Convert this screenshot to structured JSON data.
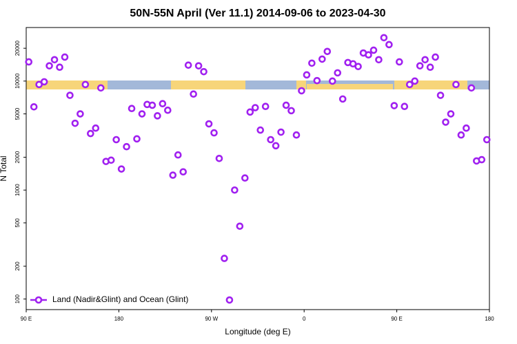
{
  "chart_data": {
    "type": "scatter",
    "title": "50N-55N April (Ver 11.1)   2014-09-06 to 2023-04-30",
    "x_label": "Longitude (deg E)",
    "y_label": "N Total",
    "log_y": true,
    "legend_position": "bottom-left",
    "xlim": [
      90,
      540
    ],
    "ylim": [
      80,
      31000
    ],
    "xticks": [
      {
        "value": 90,
        "label": "90 E"
      },
      180,
      {
        "value": 270,
        "label": "90 W"
      },
      {
        "value": 360,
        "label": "0"
      },
      {
        "value": 450,
        "label": "90 E"
      },
      {
        "value": 540,
        "label": "180"
      }
    ],
    "yticks": [
      100,
      200,
      500,
      1000,
      2000,
      5000,
      10000,
      20000
    ],
    "series": [
      {
        "name": "Land (Nadir&Glint) and Ocean (Glint)",
        "color": "#a020f0",
        "x": [
          92.5,
          97.5,
          102.5,
          107.5,
          112.5,
          117.5,
          122.5,
          127.5,
          132.5,
          137.5,
          142.5,
          147.5,
          152.5,
          157.5,
          162.5,
          167.5,
          172.5,
          177.5,
          182.5,
          187.5,
          192.5,
          197.5,
          202.5,
          207.5,
          212.5,
          217.5,
          222.5,
          227.5,
          232.5,
          237.5,
          242.5,
          247.5,
          252.5,
          257.5,
          262.5,
          267.5,
          272.5,
          277.5,
          282.5,
          287.5,
          292.5,
          297.5,
          302.5,
          307.5,
          312.5,
          317.5,
          322.5,
          327.5,
          332.5,
          337.5,
          342.5,
          347.5,
          352.5,
          357.5,
          362.5,
          367.5,
          372.5,
          377.5,
          382.5,
          387.5,
          392.5,
          397.5,
          402.5,
          407.5,
          412.5,
          417.5,
          422.5,
          427.5,
          432.5,
          437.5,
          442.5,
          447.5,
          452.5,
          457.5,
          462.5,
          467.5,
          472.5,
          477.5,
          482.5,
          487.5,
          492.5,
          497.5,
          502.5,
          507.5,
          512.5,
          517.5,
          522.5,
          527.5,
          532.5,
          537.5
        ],
        "values": [
          15000,
          5800,
          9300,
          9850,
          13800,
          15700,
          13400,
          16600,
          7400,
          4100,
          5000,
          9300,
          3300,
          3700,
          8650,
          1830,
          1880,
          2900,
          1560,
          2500,
          5600,
          2950,
          5000,
          6100,
          6000,
          4800,
          6200,
          5400,
          1370,
          2100,
          1470,
          14000,
          7600,
          13800,
          12200,
          4050,
          3350,
          1950,
          236,
          98,
          1000,
          466,
          1290,
          5200,
          5700,
          3550,
          5850,
          2900,
          2550,
          3400,
          6000,
          5350,
          3200,
          8150,
          11400,
          14600,
          10100,
          15900,
          18700,
          10000,
          11900,
          6850,
          14800,
          14400,
          13600,
          18100,
          17400,
          19200,
          15700,
          25000,
          21600,
          5950,
          15000,
          5850,
          9300,
          10000,
          13800,
          15700,
          13400,
          16600,
          7400,
          4200,
          5000,
          9300,
          3200,
          3700,
          8650,
          1850,
          1900,
          2900
        ]
      }
    ]
  }
}
